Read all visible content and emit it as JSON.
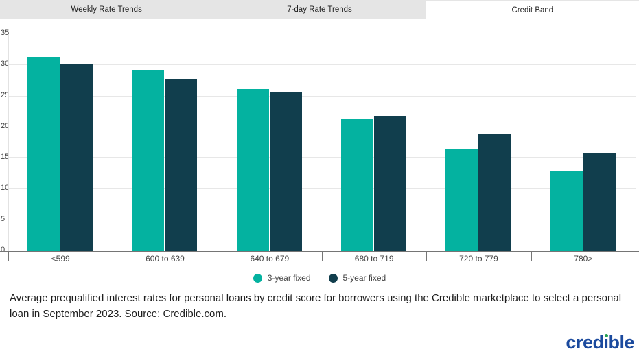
{
  "tabs": [
    {
      "label": "Weekly Rate Trends",
      "active": false
    },
    {
      "label": "7-day Rate Trends",
      "active": false
    },
    {
      "label": "Credit Band",
      "active": true
    }
  ],
  "chart_data": {
    "type": "bar",
    "title": "",
    "xlabel": "",
    "ylabel": "",
    "categories": [
      "<599",
      "600 to 639",
      "640 to 679",
      "680 to 719",
      "720 to 779",
      "780>"
    ],
    "series": [
      {
        "name": "3-year fixed",
        "color": "#04B2A0",
        "values": [
          31.3,
          29.2,
          26.1,
          21.2,
          16.3,
          12.8
        ]
      },
      {
        "name": "5-year fixed",
        "color": "#113E4D",
        "values": [
          30.0,
          27.6,
          25.5,
          21.8,
          18.8,
          15.8
        ]
      }
    ],
    "ylim": [
      0,
      35
    ],
    "ytick_step": 5,
    "grid": true,
    "legend_position": "bottom"
  },
  "caption": {
    "text": "Average prequalified interest rates for personal loans by credit score for borrowers using the Credible marketplace to select a personal loan in September 2023. Source: ",
    "link": "Credible.com",
    "suffix": "."
  },
  "logo": {
    "pre": "cred",
    "i": "ı",
    "post": "ble"
  },
  "colors": {
    "bar_3yr": "#04B2A0",
    "bar_5yr": "#113E4D",
    "tab_gray": "#e5e5e5",
    "axis": "#757575",
    "gridline": "#e7e7e7",
    "logo_blue": "#1b4a9e",
    "logo_green": "#27a053"
  }
}
